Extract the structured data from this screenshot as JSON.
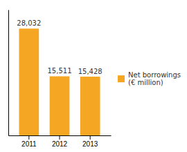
{
  "chart_data": {
    "type": "bar",
    "categories": [
      "2011",
      "2012",
      "2013"
    ],
    "series": [
      {
        "name": "Net borrowings\n(€ million)",
        "color": "#F5A623",
        "values": [
          28032,
          15511,
          15428
        ],
        "value_labels": [
          "28,032",
          "15,511",
          "15,428"
        ]
      }
    ],
    "ylim": [
      0,
      33000
    ],
    "data_labels": true,
    "tick_labels": "x",
    "grid": false,
    "legend": "right"
  }
}
